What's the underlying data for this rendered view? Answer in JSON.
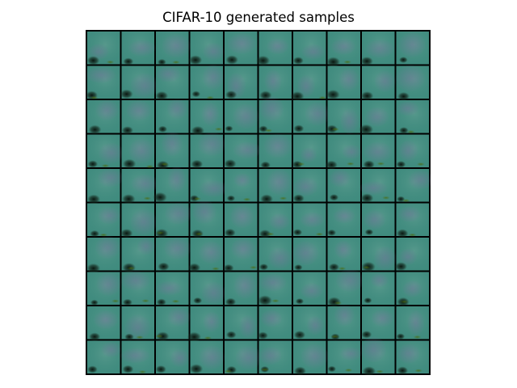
{
  "figure": {
    "title": "CIFAR-10 generated samples"
  },
  "grid": {
    "rows": 10,
    "cols": 10,
    "tile_color": "#3f8b7e",
    "tile_highlight_color": "#5f9c8f",
    "tile_purple_tint": "#7a6f9a",
    "tile_shadow_color": "#0b160e",
    "tile_green_color": "#2c5a24",
    "border_color": "#000000"
  }
}
